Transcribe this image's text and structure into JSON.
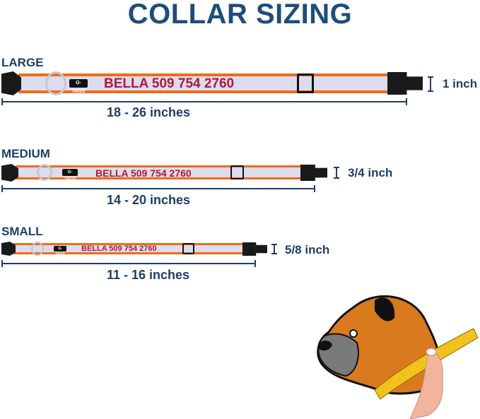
{
  "title": "COLLAR SIZING",
  "brand_tag": "G-TAGS",
  "colors": {
    "navy": "#1d3f66",
    "strap_border": "#f26a1b",
    "strap_fill": "#dcdcec",
    "engraving": "#b3173a"
  },
  "sizes": [
    {
      "label": "LARGE",
      "engraving": "BELLA 509 754 2760",
      "length": "18 - 26 inches",
      "width": "1 inch"
    },
    {
      "label": "MEDIUM",
      "engraving": "BELLA 509 754 2760",
      "length": "14 - 20 inches",
      "width": "3/4 inch"
    },
    {
      "label": "SMALL",
      "engraving": "BELLA 509 754 2760",
      "length": "11 - 16 inches",
      "width": "5/8 inch"
    }
  ],
  "illustration": "boxer-dog-measuring-tape"
}
